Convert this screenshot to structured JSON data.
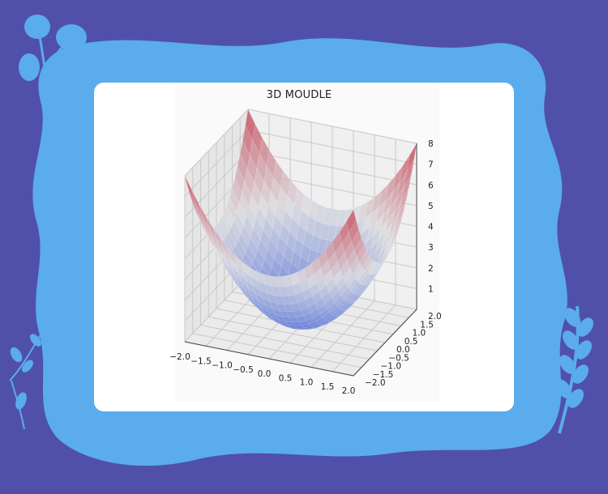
{
  "colors": {
    "background": "#5150a8",
    "frame": "#5aacec",
    "card": "#ffffff",
    "surface_low": "#5a74d8",
    "surface_mid": "#dcdde0",
    "surface_high": "#c8505e"
  },
  "decorations": [
    "flower-icon",
    "leaf-sprig-icon",
    "fern-icon"
  ],
  "chart_data": {
    "type": "surface",
    "title": "3D MOUDLE",
    "function": "z = x^2 + y^2",
    "x_ticks": [
      "−2.0",
      "−1.5",
      "−1.0",
      "−0.5",
      "0.0",
      "0.5",
      "1.0",
      "1.5",
      "2.0"
    ],
    "y_ticks": [
      "−2.0",
      "−1.5",
      "−1.0",
      "−0.5",
      "0.0",
      "0.5",
      "1.0",
      "1.5",
      "2.0"
    ],
    "z_ticks": [
      "1",
      "2",
      "3",
      "4",
      "5",
      "6",
      "7",
      "8"
    ],
    "xlim": [
      -2,
      2
    ],
    "ylim": [
      -2,
      2
    ],
    "zlim": [
      0,
      8
    ],
    "colormap": "coolwarm",
    "grid": true
  }
}
